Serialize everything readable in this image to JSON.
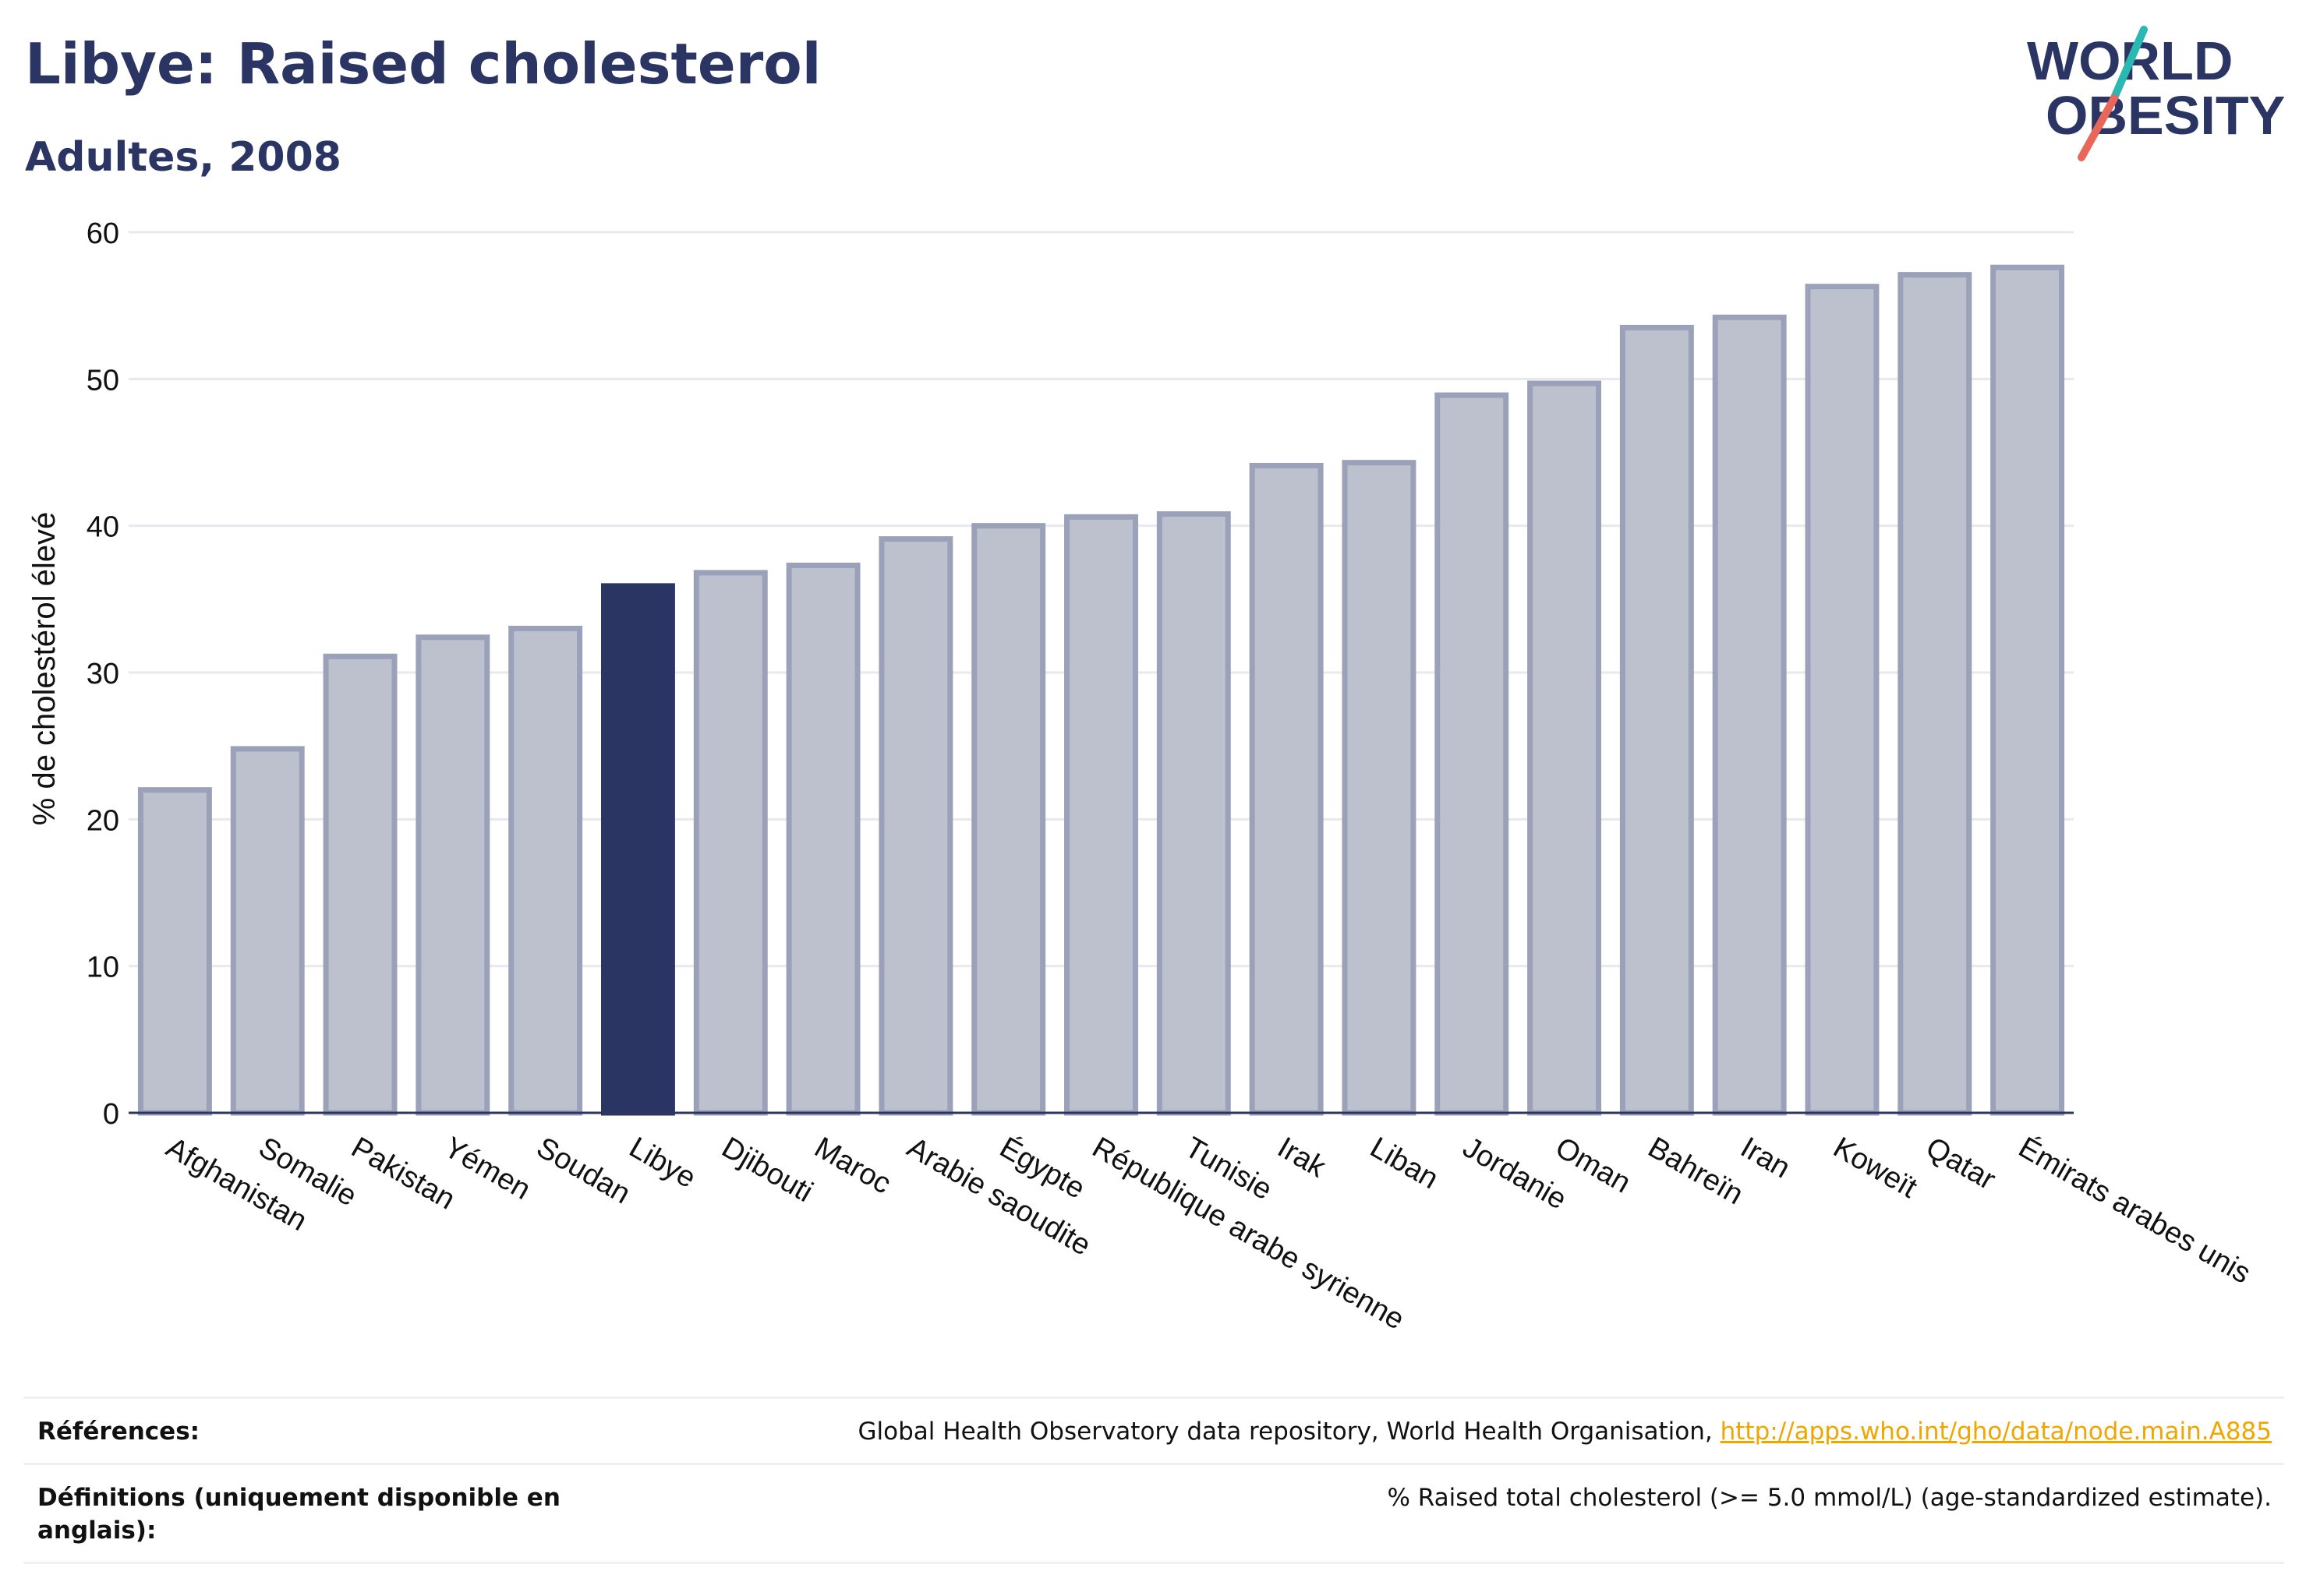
{
  "header": {
    "title": "Libye: Raised cholesterol",
    "subtitle": "Adultes, 2008"
  },
  "logo": {
    "line1": "WORLD",
    "line2": "OBESITY",
    "colors": {
      "text": "#2b3564",
      "accent_teal": "#2bb8b3",
      "accent_coral": "#e8665a"
    }
  },
  "chart_data": {
    "type": "bar",
    "title": "Libye: Raised cholesterol",
    "subtitle": "Adultes, 2008",
    "xlabel": "",
    "ylabel": "% de cholestérol élevé",
    "ylim": [
      0,
      60
    ],
    "yticks": [
      0,
      10,
      20,
      30,
      40,
      50,
      60
    ],
    "grid": true,
    "highlight": "Libye",
    "categories": [
      "Afghanistan",
      "Somalie",
      "Pakistan",
      "Yémen",
      "Soudan",
      "Libye",
      "Djibouti",
      "Maroc",
      "Arabie saoudite",
      "Égypte",
      "République arabe syrienne",
      "Tunisie",
      "Irak",
      "Liban",
      "Jordanie",
      "Oman",
      "Bahreïn",
      "Iran",
      "Koweït",
      "Qatar",
      "Émirats arabes unis"
    ],
    "values": [
      22.0,
      24.8,
      31.1,
      32.4,
      33.0,
      35.9,
      36.8,
      37.3,
      39.1,
      40.0,
      40.6,
      40.8,
      44.1,
      44.3,
      48.9,
      49.7,
      53.5,
      54.2,
      56.3,
      57.1,
      57.6
    ],
    "colors": {
      "bar": "#bdc1ce",
      "bar_edge": "#9aa1b8",
      "highlight": "#2b3564",
      "grid": "#e8e9ef",
      "axis": "#2c365f"
    }
  },
  "footer": {
    "references_label": "Références:",
    "references_text": "Global Health Observatory data repository, World Health Organisation, ",
    "references_link": "http://apps.who.int/gho/data/node.main.A885",
    "definitions_label": "Définitions (uniquement disponible en anglais):",
    "definitions_text": "% Raised total cholesterol (>= 5.0 mmol/L) (age-standardized estimate)."
  }
}
